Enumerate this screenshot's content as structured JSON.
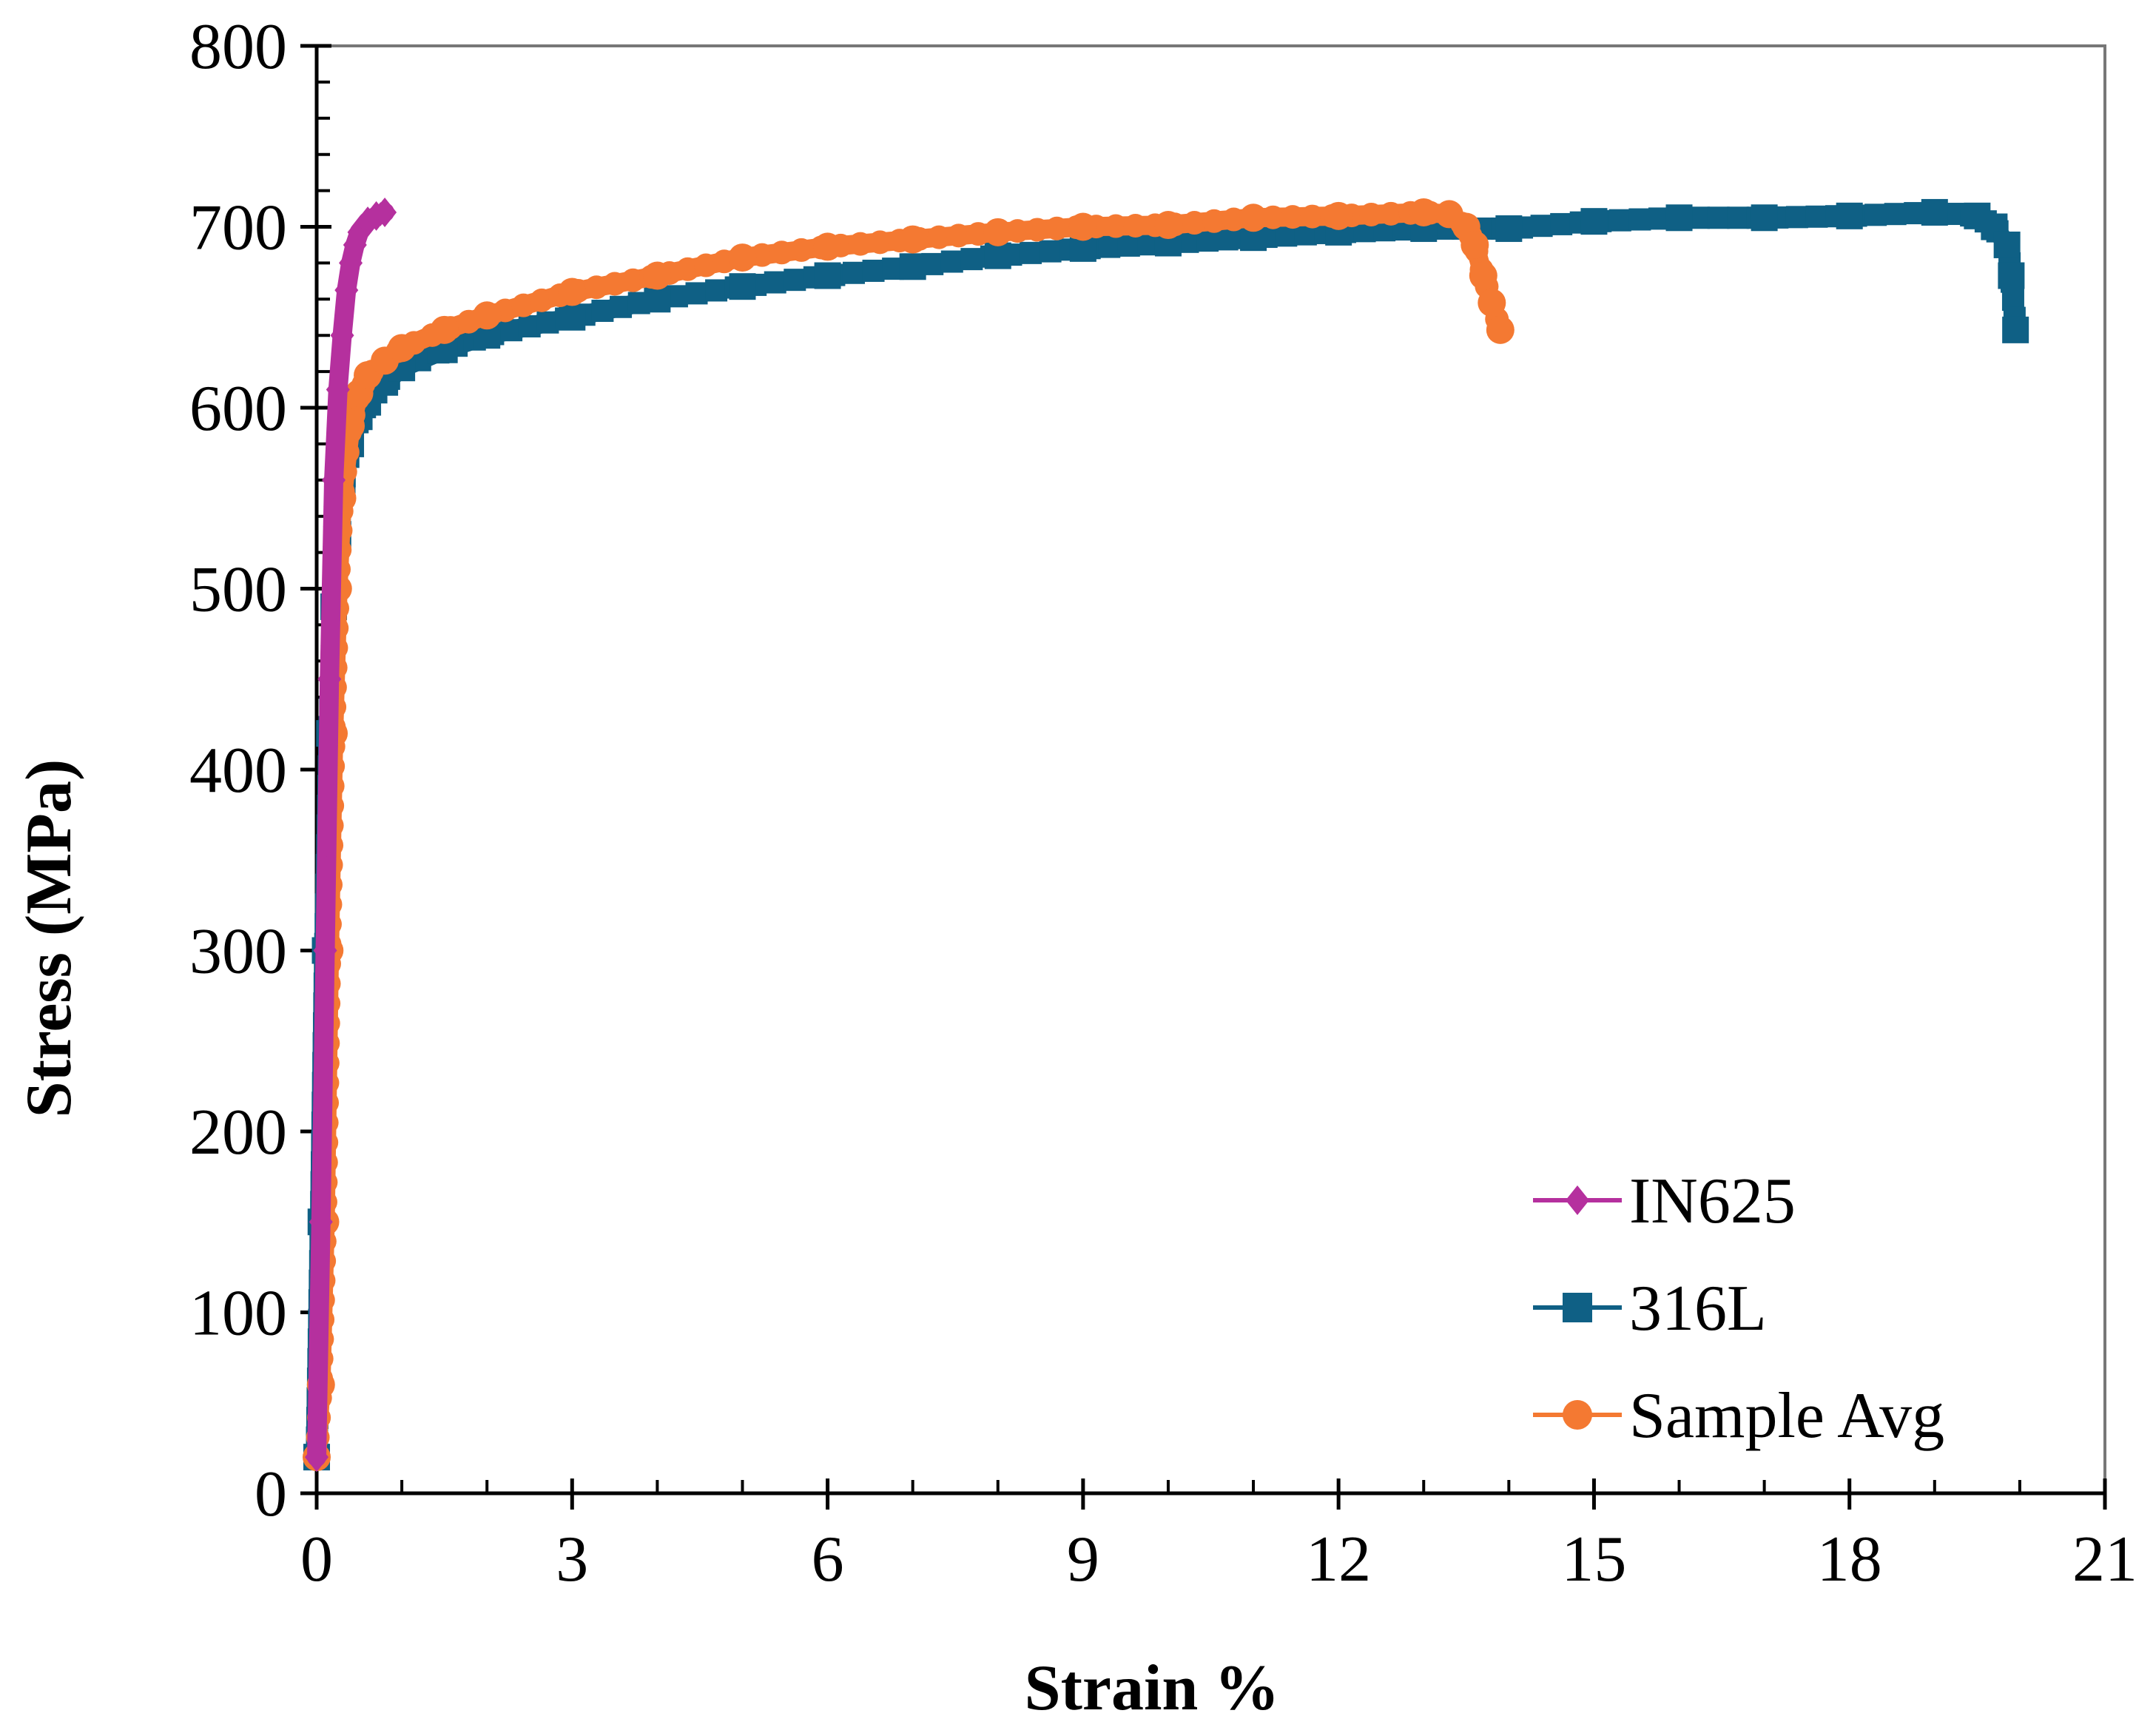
{
  "chart_data": {
    "type": "line",
    "title": "",
    "xlabel": "Strain %",
    "ylabel": "Stress (MPa)",
    "xlim": [
      0,
      21
    ],
    "ylim": [
      0,
      800
    ],
    "xticks": [
      0,
      3,
      6,
      9,
      12,
      15,
      18,
      21
    ],
    "yticks": [
      0,
      100,
      200,
      300,
      400,
      500,
      600,
      700,
      800
    ],
    "xticks_minor_step": 1,
    "yticks_minor_step": 20,
    "grid": false,
    "legend_position": "bottom-right",
    "series": [
      {
        "name": "IN625",
        "color": "#b5309e",
        "marker": "diamond",
        "x": [
          0.0,
          0.05,
          0.1,
          0.15,
          0.2,
          0.25,
          0.3,
          0.35,
          0.4,
          0.45,
          0.5,
          0.6,
          0.7,
          0.8
        ],
        "y": [
          20,
          150,
          300,
          450,
          560,
          610,
          640,
          665,
          680,
          690,
          697,
          703,
          706,
          708
        ]
      },
      {
        "name": "316L",
        "color": "#0f6085",
        "marker": "square",
        "x": [
          0.0,
          0.05,
          0.1,
          0.15,
          0.2,
          0.25,
          0.3,
          0.4,
          0.5,
          0.6,
          0.8,
          1.0,
          1.5,
          2.0,
          3.0,
          4.0,
          5.0,
          6.0,
          7.0,
          8.0,
          9.0,
          10.0,
          11.0,
          12.0,
          13.0,
          14.0,
          15.0,
          16.0,
          17.0,
          18.0,
          19.0,
          19.5,
          19.7,
          19.85,
          19.9,
          19.95
        ],
        "y": [
          20,
          150,
          300,
          420,
          490,
          530,
          555,
          580,
          595,
          603,
          614,
          622,
          632,
          640,
          650,
          660,
          667,
          673,
          678,
          684,
          688,
          691,
          694,
          697,
          699,
          699,
          703,
          705,
          705,
          706,
          708,
          706,
          700,
          690,
          673,
          643
        ]
      },
      {
        "name": "Sample Avg",
        "color": "#f47932",
        "marker": "circle",
        "x": [
          0.0,
          0.05,
          0.1,
          0.15,
          0.2,
          0.25,
          0.3,
          0.4,
          0.5,
          0.6,
          0.8,
          1.0,
          1.5,
          2.0,
          3.0,
          4.0,
          5.0,
          6.0,
          7.0,
          8.0,
          9.0,
          10.0,
          11.0,
          12.0,
          13.0,
          13.3,
          13.5,
          13.6,
          13.7,
          13.8,
          13.9
        ],
        "y": [
          20,
          60,
          150,
          300,
          420,
          500,
          550,
          590,
          608,
          618,
          626,
          633,
          643,
          651,
          664,
          673,
          683,
          689,
          693,
          697,
          700,
          701,
          705,
          706,
          708,
          707,
          700,
          690,
          673,
          658,
          643
        ]
      }
    ]
  }
}
